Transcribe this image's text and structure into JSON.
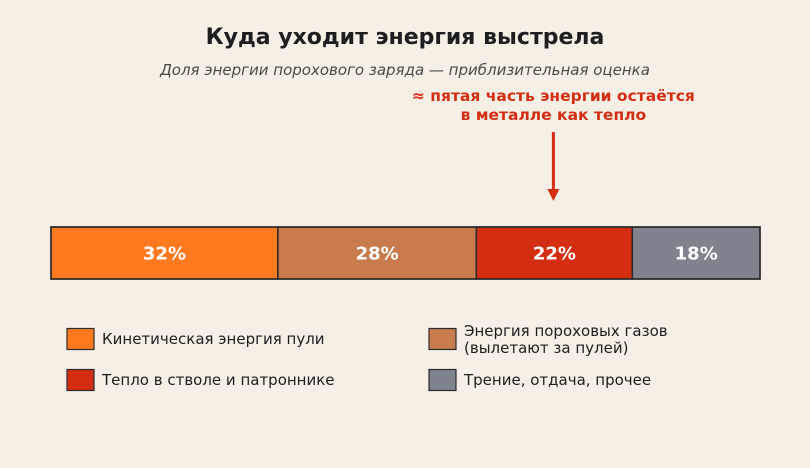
{
  "chart_data": {
    "type": "bar",
    "orientation": "horizontal-stacked",
    "title": "Куда уходит энергия выстрела",
    "subtitle": "Доля энергии порохового заряда — приблизительная оценка",
    "unit": "%",
    "series": [
      {
        "name": "Кинетическая энергия пули",
        "value": 32,
        "label": "32%",
        "color": "#ff7a1f"
      },
      {
        "name": "Энергия пороховых газов\n(вылетают за пулей)",
        "value": 28,
        "label": "28%",
        "color": "#c87b4c"
      },
      {
        "name": "Тепло в стволе и патроннике",
        "value": 22,
        "label": "22%",
        "color": "#d42e12"
      },
      {
        "name": "Трение, отдача, прочее",
        "value": 18,
        "label": "18%",
        "color": "#7e838d"
      }
    ],
    "annotation": {
      "lines": [
        "≈ пятая часть энергии остаётся",
        "в металле как тепло"
      ],
      "target_series": 2,
      "color": "#d42e12"
    },
    "legend": {
      "placement": "bottom",
      "columns": 2
    }
  }
}
